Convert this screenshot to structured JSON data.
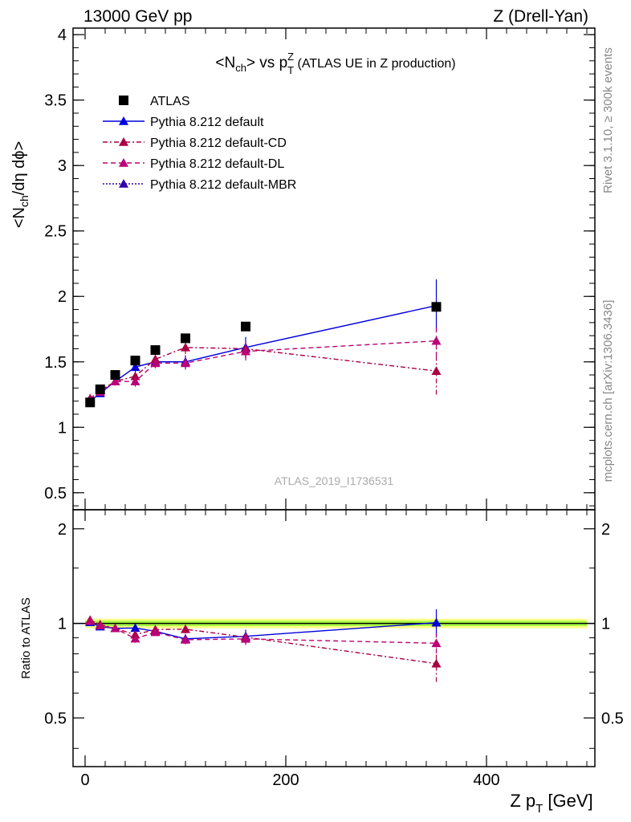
{
  "header": {
    "left": "13000 GeV pp",
    "right": "Z (Drell-Yan)"
  },
  "chart_data": {
    "type": "scatter",
    "title": "<N_ch> vs p_T^Z (ATLAS UE in Z production)",
    "ylabel": "<N_ch/dη dϕ>",
    "ratio_ylabel": "Ratio to ATLAS",
    "xlabel": "Z p_T [GeV]",
    "xlim": [
      -12,
      508
    ],
    "ylim": [
      0.37,
      4.05
    ],
    "ratio_ylim": [
      0.35,
      2.3
    ],
    "x_ticks": [
      0,
      200,
      400
    ],
    "y_ticks": [
      0.5,
      1,
      1.5,
      2,
      2.5,
      3,
      3.5,
      4
    ],
    "ratio_y_ticks": [
      0.5,
      1,
      2
    ],
    "watermark": "ATLAS_2019_I1736531",
    "side_text_top": "Rivet 3.1.10, ≥ 300k events",
    "side_text_bottom": "mcplots.cern.ch [arXiv:1306.3436]",
    "legend_position": "top-left",
    "colors": {
      "data": "#000000",
      "default": "#0000dd",
      "cd": "#aa0044",
      "dl": "#bb0077",
      "mbr": "#3300aa",
      "band_inner": "#aaff44",
      "band_outer": "#ffff88"
    },
    "series": [
      {
        "name": "ATLAS",
        "style": "data",
        "x": [
          5,
          15,
          30,
          50,
          70,
          100,
          160,
          350
        ],
        "y": [
          1.19,
          1.29,
          1.4,
          1.51,
          1.59,
          1.68,
          1.77,
          1.92
        ]
      },
      {
        "name": "Pythia 8.212 default",
        "style": "solid",
        "color": "#0000dd",
        "x": [
          5,
          15,
          30,
          50,
          70,
          100,
          160,
          350
        ],
        "y": [
          1.2,
          1.26,
          1.35,
          1.46,
          1.5,
          1.5,
          1.61,
          1.93
        ],
        "err": [
          0.03,
          0.03,
          0.03,
          0.04,
          0.04,
          0.05,
          0.08,
          0.2
        ]
      },
      {
        "name": "Pythia 8.212 default-CD",
        "style": "dashdot",
        "color": "#aa0044",
        "x": [
          5,
          15,
          30,
          50,
          70,
          100,
          160,
          350
        ],
        "y": [
          1.22,
          1.28,
          1.35,
          1.39,
          1.52,
          1.61,
          1.6,
          1.43
        ],
        "err": [
          0.02,
          0.03,
          0.03,
          0.04,
          0.04,
          0.05,
          0.07,
          0.18
        ]
      },
      {
        "name": "Pythia 8.212 default-DL",
        "style": "dashed",
        "color": "#bb0077",
        "x": [
          5,
          15,
          30,
          50,
          70,
          100,
          160,
          350
        ],
        "y": [
          1.21,
          1.27,
          1.35,
          1.35,
          1.49,
          1.49,
          1.58,
          1.66
        ],
        "err": [
          0.02,
          0.03,
          0.03,
          0.04,
          0.04,
          0.05,
          0.07,
          0.12
        ]
      },
      {
        "name": "Pythia 8.212 default-MBR",
        "style": "dotted",
        "color": "#3300aa",
        "x": [],
        "y": []
      }
    ]
  }
}
